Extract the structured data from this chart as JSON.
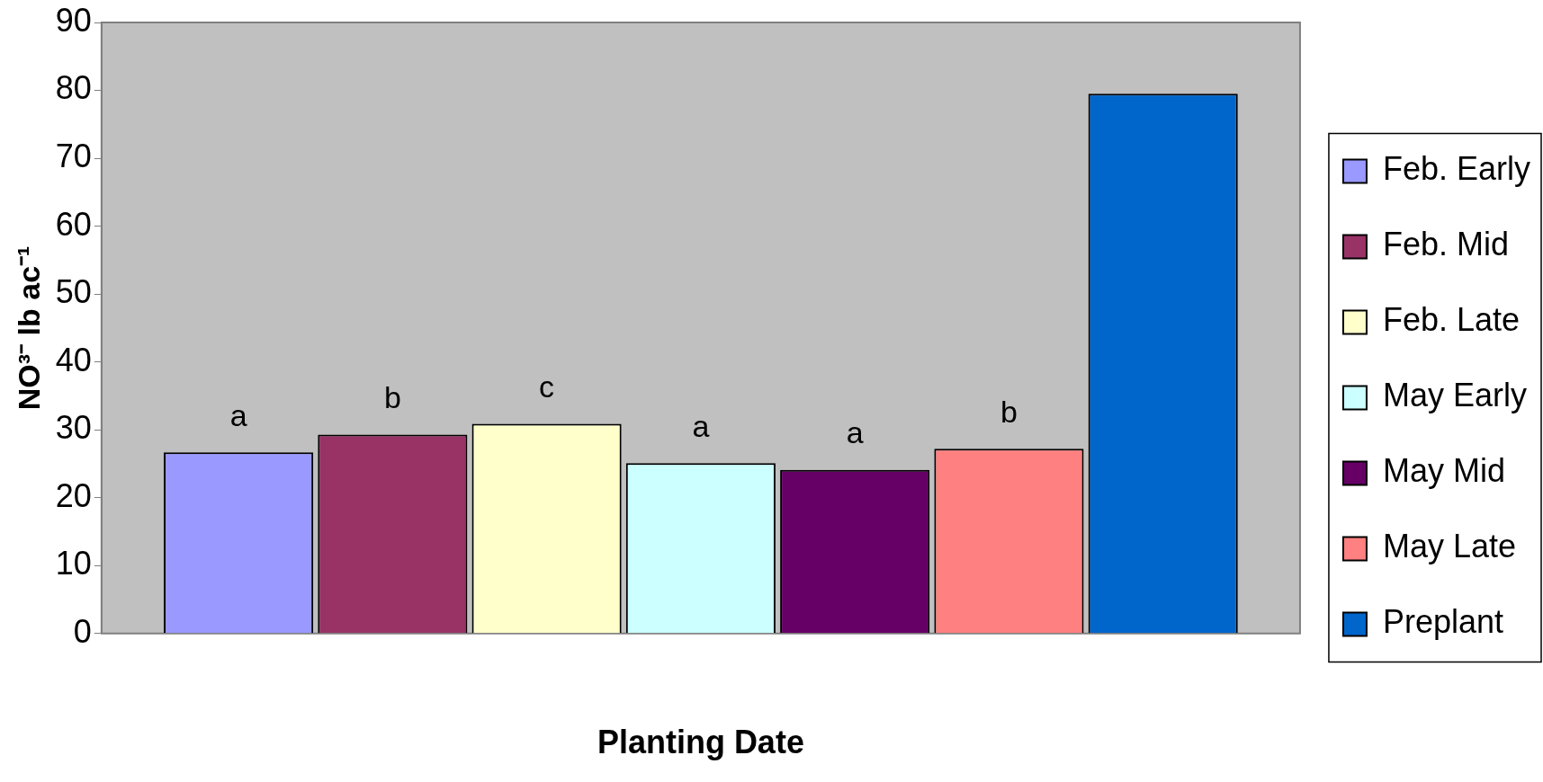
{
  "chart_data": {
    "type": "bar",
    "xlabel": "Planting Date",
    "ylabel": "NO³⁻ lb ac⁻¹",
    "categories": [
      null
    ],
    "series": [
      {
        "name": "Feb. Early",
        "color": "#9999ff",
        "values": [
          26.7
        ],
        "value_labels": [
          "a"
        ]
      },
      {
        "name": "Feb. Mid",
        "color": "#993366",
        "values": [
          29.3
        ],
        "value_labels": [
          "b"
        ]
      },
      {
        "name": "Feb. Late",
        "color": "#ffffcc",
        "values": [
          30.9
        ],
        "value_labels": [
          "c"
        ]
      },
      {
        "name": "May Early",
        "color": "#ccffff",
        "values": [
          25.1
        ],
        "value_labels": [
          "a"
        ]
      },
      {
        "name": "May Mid",
        "color": "#660066",
        "values": [
          24.1
        ],
        "value_labels": [
          "a"
        ]
      },
      {
        "name": "May Late",
        "color": "#ff8080",
        "values": [
          27.2
        ],
        "value_labels": [
          "b"
        ]
      },
      {
        "name": "Preplant",
        "color": "#0066cc",
        "values": [
          79.5
        ]
      }
    ],
    "ylim": [
      0,
      90
    ],
    "yticks": [
      0,
      10,
      20,
      30,
      40,
      50,
      60,
      70,
      80,
      90
    ],
    "grid": false,
    "legend": "right"
  }
}
